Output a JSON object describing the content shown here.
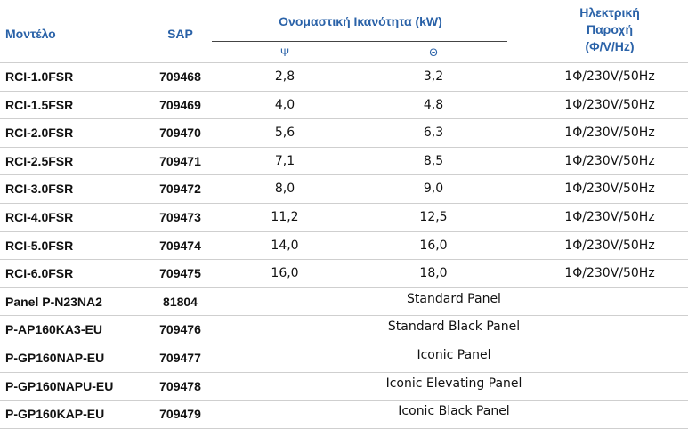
{
  "header": {
    "model": "Μοντέλο",
    "sap": "SAP",
    "capacity": "Ονομαστική Ικανότητα (kW)",
    "cool": "Ψ",
    "heat": "Θ",
    "power_line1": "Ηλεκτρική",
    "power_line2": "Παροχή",
    "power_line3": "(Φ/V/Hz)"
  },
  "rows": [
    {
      "model": "RCI-1.0FSR",
      "sap": "709468",
      "cool": "2,8",
      "heat": "3,2",
      "power": "1Φ/230V/50Hz"
    },
    {
      "model": "RCI-1.5FSR",
      "sap": "709469",
      "cool": "4,0",
      "heat": "4,8",
      "power": "1Φ/230V/50Hz"
    },
    {
      "model": "RCI-2.0FSR",
      "sap": "709470",
      "cool": "5,6",
      "heat": "6,3",
      "power": "1Φ/230V/50Hz"
    },
    {
      "model": "RCI-2.5FSR",
      "sap": "709471",
      "cool": "7,1",
      "heat": "8,5",
      "power": "1Φ/230V/50Hz"
    },
    {
      "model": "RCI-3.0FSR",
      "sap": "709472",
      "cool": "8,0",
      "heat": "9,0",
      "power": "1Φ/230V/50Hz"
    },
    {
      "model": "RCI-4.0FSR",
      "sap": "709473",
      "cool": "11,2",
      "heat": "12,5",
      "power": "1Φ/230V/50Hz"
    },
    {
      "model": "RCI-5.0FSR",
      "sap": "709474",
      "cool": "14,0",
      "heat": "16,0",
      "power": "1Φ/230V/50Hz"
    },
    {
      "model": "RCI-6.0FSR",
      "sap": "709475",
      "cool": "16,0",
      "heat": "18,0",
      "power": "1Φ/230V/50Hz"
    }
  ],
  "panels": [
    {
      "model": "Panel  P-N23NA2",
      "sap": "81804",
      "desc": "Standard Panel"
    },
    {
      "model": "P-AP160KA3-EU",
      "sap": "709476",
      "desc": "Standard Black Panel"
    },
    {
      "model": "P-GP160NAP-EU",
      "sap": "709477",
      "desc": "Iconic Panel"
    },
    {
      "model": "P-GP160NAPU-EU",
      "sap": "709478",
      "desc": "Iconic Elevating Panel"
    },
    {
      "model": "P-GP160KAP-EU",
      "sap": "709479",
      "desc": "Iconic Black Panel"
    }
  ],
  "colors": {
    "header_text": "#2a62a8",
    "divider": "#cfcfcf"
  }
}
